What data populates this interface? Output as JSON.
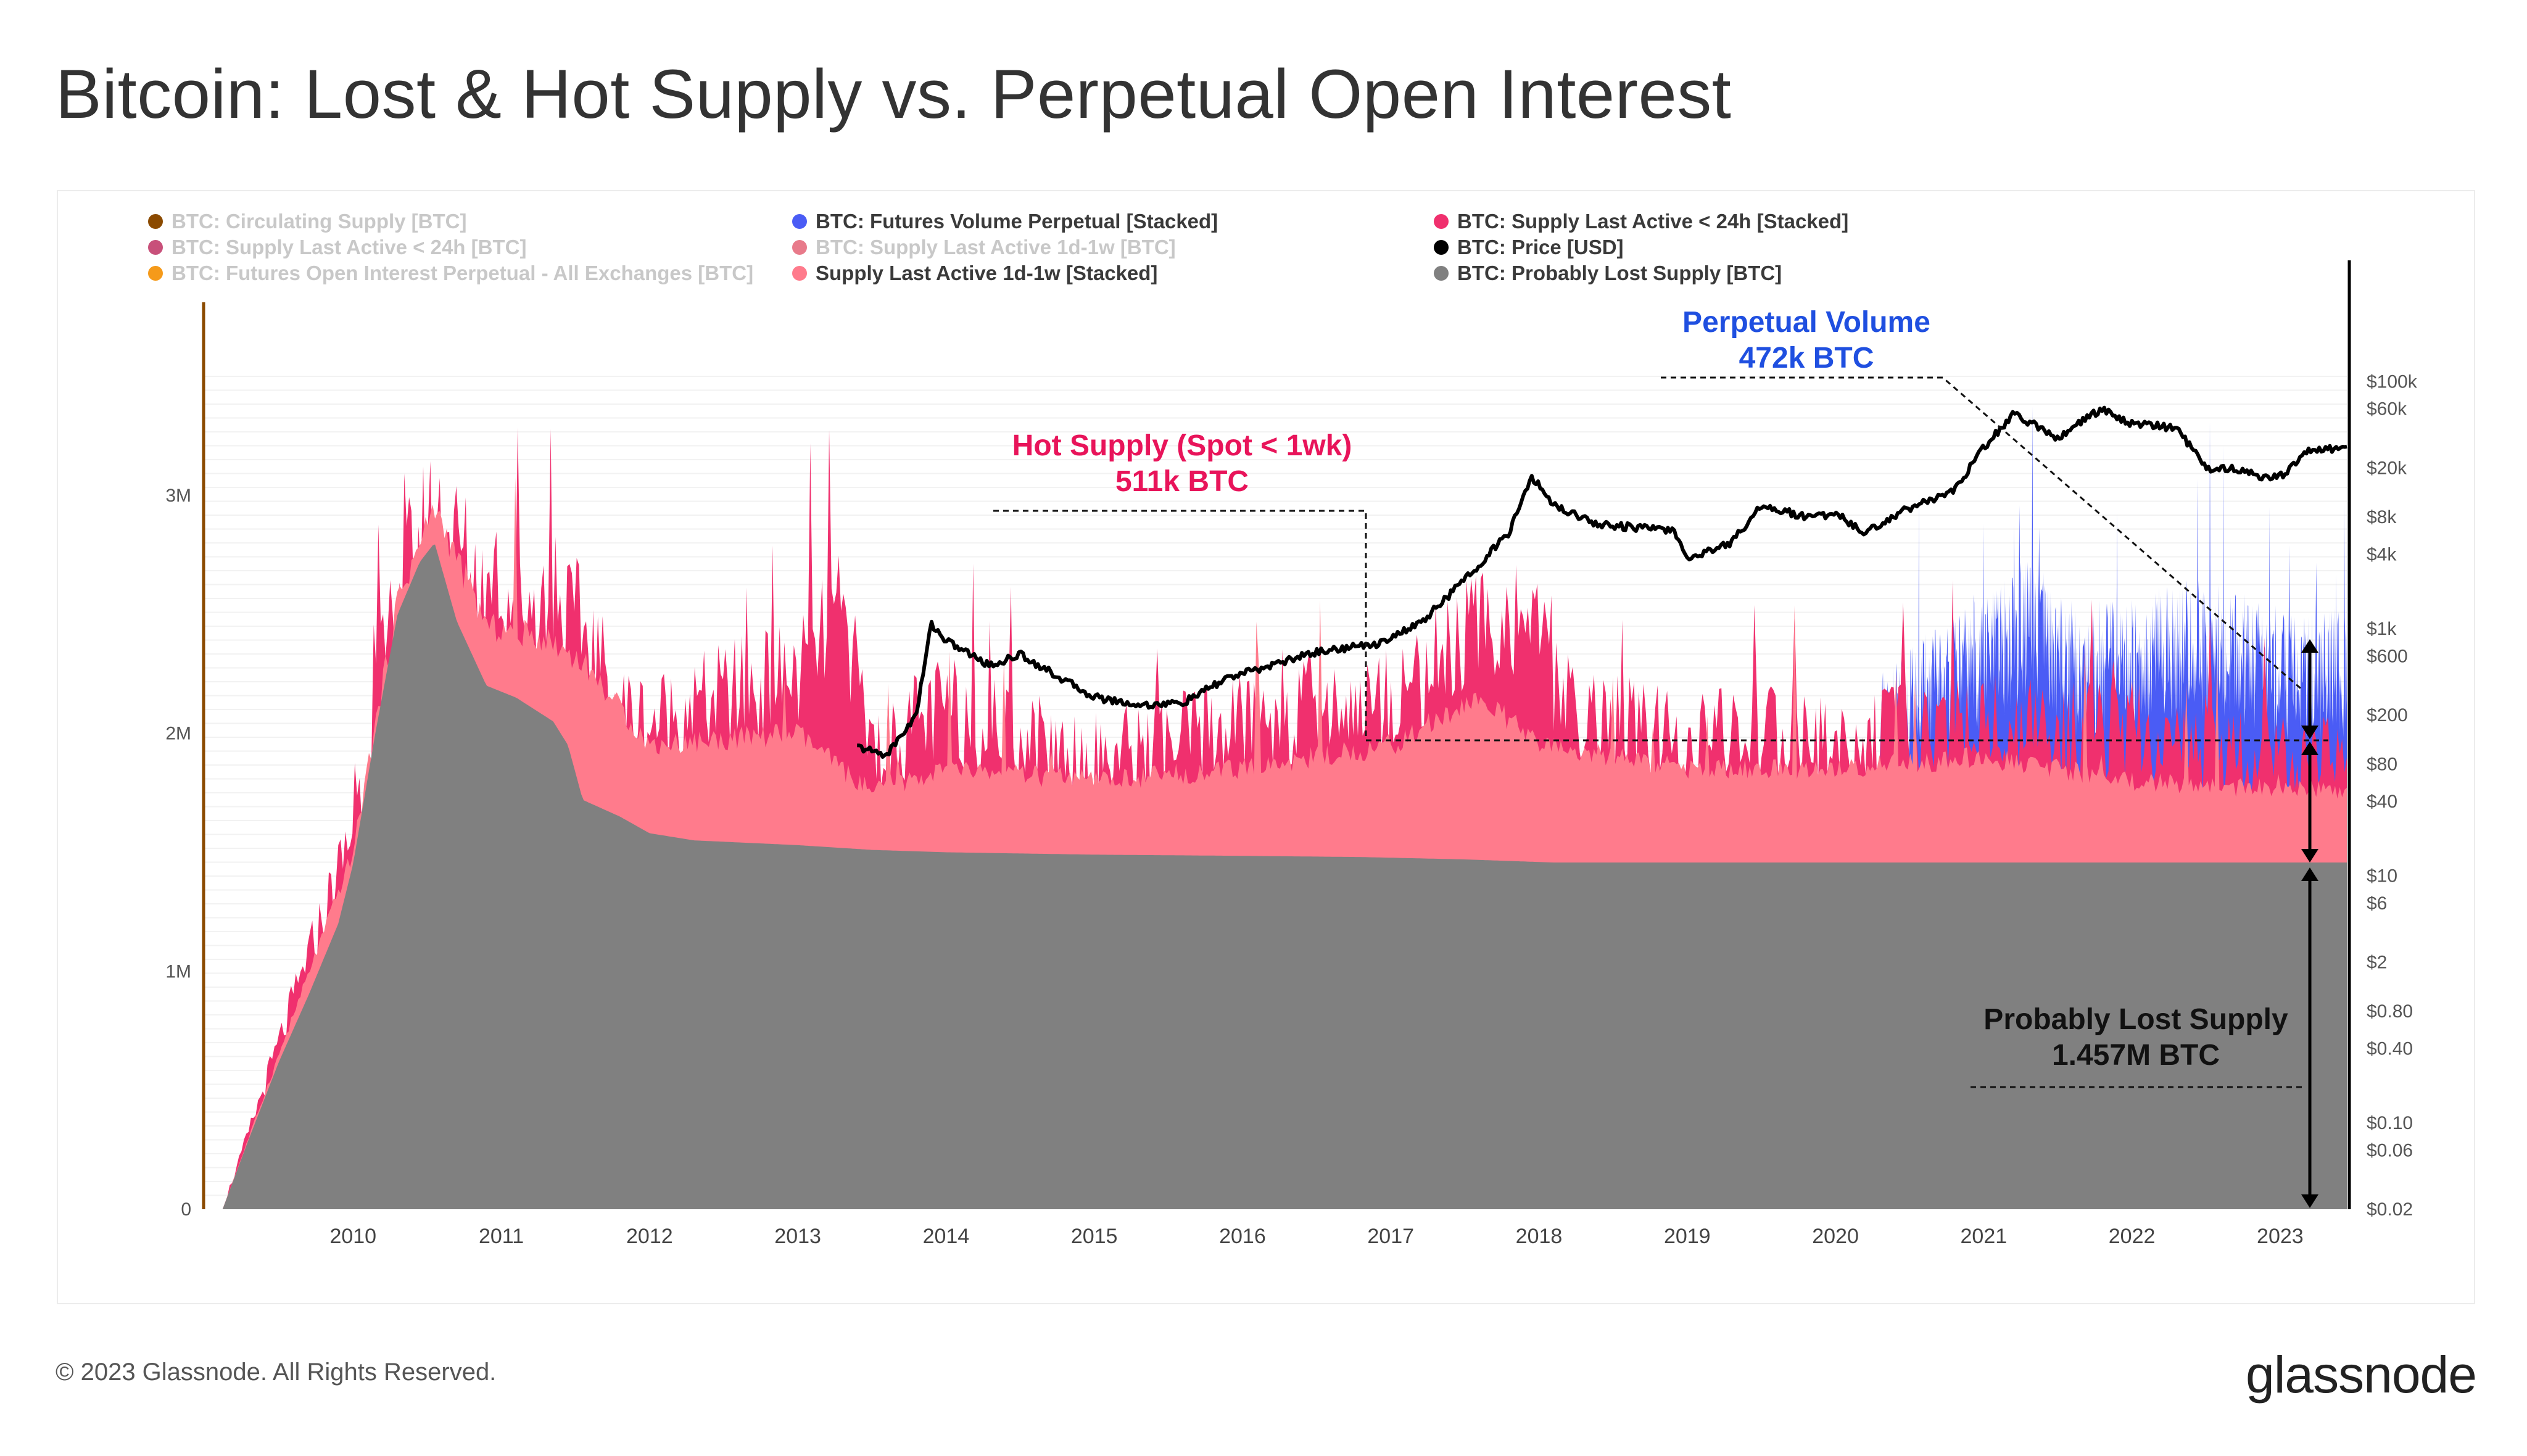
{
  "title": "Bitcoin: Lost & Hot Supply vs. Perpetual Open Interest",
  "footer": {
    "copyright": "© 2023 Glassnode. All Rights Reserved.",
    "brand": "glassnode"
  },
  "legend": {
    "col1": [
      {
        "label": "BTC: Circulating Supply [BTC]",
        "color": "#8b4a00",
        "muted": true
      },
      {
        "label": "BTC: Supply Last Active < 24h [BTC]",
        "color": "#c8507a",
        "muted": true
      },
      {
        "label": "BTC: Futures Open Interest Perpetual - All Exchanges [BTC]",
        "color": "#f59a1a",
        "muted": true
      }
    ],
    "col2": [
      {
        "label": "BTC: Futures Volume Perpetual [Stacked]",
        "color": "#4a5cf5",
        "muted": false
      },
      {
        "label": "BTC: Supply Last Active 1d-1w [BTC]",
        "color": "#e87a8a",
        "muted": true
      },
      {
        "label": "Supply Last Active 1d-1w [Stacked]",
        "color": "#ff7b8c",
        "muted": false
      }
    ],
    "col3": [
      {
        "label": "BTC: Supply Last Active < 24h [Stacked]",
        "color": "#f0306e",
        "muted": false
      },
      {
        "label": "BTC: Price [USD]",
        "color": "#000000",
        "muted": false
      },
      {
        "label": "BTC: Probably Lost Supply [BTC]",
        "color": "#808080",
        "muted": false
      }
    ]
  },
  "annotations": {
    "perp_title": "Perpetual Volume",
    "perp_value": "472k BTC",
    "hot_title": "Hot Supply (Spot < 1wk)",
    "hot_value": "511k BTC",
    "lost_title": "Probably Lost Supply",
    "lost_value": "1.457M BTC"
  },
  "colors": {
    "lost": "#808080",
    "supply_1d1w": "#ff7b8c",
    "supply_24h": "#f0306e",
    "perp_volume": "#4a5cf5",
    "price": "#000000",
    "circ_axis": "#8b4a00",
    "perp_annotation": "#1f4fe0",
    "hot_annotation": "#e8145a"
  },
  "chart_data": {
    "type": "area",
    "x_ticks": [
      "2010",
      "2011",
      "2012",
      "2013",
      "2014",
      "2015",
      "2016",
      "2017",
      "2018",
      "2019",
      "2020",
      "2021",
      "2022",
      "2023"
    ],
    "y_left_ticks": [
      "0",
      "1M",
      "2M",
      "3M"
    ],
    "y_left_values": [
      0,
      1000000,
      2000000,
      3000000
    ],
    "y_left_range": [
      0,
      3500000
    ],
    "y_right_ticks": [
      "$100k",
      "$60k",
      "$20k",
      "$8k",
      "$4k",
      "$1k",
      "$600",
      "$200",
      "$80",
      "$40",
      "$10",
      "$6",
      "$2",
      "$0.80",
      "$0.40",
      "$0.10",
      "$0.06",
      "$0.02"
    ],
    "y_right_values": [
      100000,
      60000,
      20000,
      8000,
      4000,
      1000,
      600,
      200,
      80,
      40,
      10,
      6,
      2,
      0.8,
      0.4,
      0.1,
      0.06,
      0.02
    ],
    "y_right_scale": "log",
    "y_right_range": [
      0.02,
      110000
    ],
    "x_range": [
      2009.0,
      2023.45
    ],
    "series": [
      {
        "name": "BTC: Probably Lost Supply [BTC]",
        "x": [
          2009.12,
          2009.3,
          2009.5,
          2009.7,
          2009.9,
          2010.0,
          2010.15,
          2010.3,
          2010.45,
          2010.55,
          2010.7,
          2010.9,
          2011.1,
          2011.35,
          2011.45,
          2011.55,
          2011.8,
          2012.0,
          2012.3,
          2013.0,
          2013.5,
          2014.0,
          2015.0,
          2016.0,
          2016.8,
          2017.5,
          2018.1,
          2019.0,
          2020.0,
          2021.0,
          2022.0,
          2023.45
        ],
        "values": [
          0,
          300000,
          620000,
          900000,
          1200000,
          1450000,
          2000000,
          2500000,
          2720000,
          2800000,
          2470000,
          2200000,
          2150000,
          2050000,
          1950000,
          1720000,
          1650000,
          1580000,
          1550000,
          1530000,
          1510000,
          1500000,
          1490000,
          1485000,
          1480000,
          1470000,
          1457000,
          1457000,
          1457000,
          1457000,
          1457000,
          1457000
        ]
      },
      {
        "name": "Supply Last Active 1d-1w [Stacked]",
        "x": [
          2009.12,
          2009.5,
          2010.0,
          2010.3,
          2010.55,
          2010.9,
          2011.3,
          2011.55,
          2012.0,
          2013.0,
          2013.5,
          2014.0,
          2015.0,
          2016.0,
          2017.0,
          2017.6,
          2018.0,
          2019.0,
          2020.0,
          2021.0,
          2022.0,
          2023.45
        ],
        "values": [
          0,
          650000,
          1500000,
          2560000,
          2950000,
          2450000,
          2400000,
          2300000,
          1950000,
          2000000,
          1750000,
          1850000,
          1800000,
          1850000,
          1950000,
          2150000,
          1950000,
          1850000,
          1850000,
          1900000,
          1800000,
          1750000
        ]
      },
      {
        "name": "BTC: Supply Last Active < 24h [Stacked]",
        "x": [
          2009.12,
          2009.5,
          2010.0,
          2010.3,
          2010.55,
          2010.9,
          2011.3,
          2011.55,
          2011.8,
          2012.0,
          2012.5,
          2013.0,
          2013.3,
          2013.5,
          2014.0,
          2014.5,
          2015.0,
          2015.5,
          2016.0,
          2016.5,
          2017.0,
          2017.6,
          2017.9,
          2018.2,
          2019.0,
          2019.5,
          2020.0,
          2020.5,
          2021.0,
          2021.5,
          2022.0,
          2022.5,
          2023.0,
          2023.45
        ],
        "values": [
          0,
          700000,
          1600000,
          2600000,
          2950000,
          2600000,
          2550000,
          2450000,
          2100000,
          2050000,
          2150000,
          2250000,
          2500000,
          1950000,
          2100000,
          2000000,
          1900000,
          1950000,
          2050000,
          2100000,
          2150000,
          2450000,
          2500000,
          2100000,
          1950000,
          2000000,
          1950000,
          2000000,
          2050000,
          2000000,
          2000000,
          1950000,
          1900000,
          1850000
        ]
      },
      {
        "name": "BTC: Futures Volume Perpetual [Stacked]",
        "x": [
          2020.3,
          2020.6,
          2021.0,
          2021.3,
          2021.6,
          2022.0,
          2022.3,
          2022.6,
          2023.0,
          2023.45
        ],
        "values": [
          2000000,
          2150000,
          2300000,
          2450000,
          2250000,
          2300000,
          2350000,
          2350000,
          2250000,
          2250000
        ]
      },
      {
        "name": "BTC: Price [USD]",
        "x": [
          2013.4,
          2013.6,
          2013.8,
          2013.9,
          2014.0,
          2014.3,
          2014.5,
          2014.8,
          2015.0,
          2015.3,
          2015.6,
          2015.9,
          2016.0,
          2016.5,
          2016.9,
          2017.2,
          2017.5,
          2017.8,
          2017.95,
          2018.1,
          2018.4,
          2018.7,
          2018.9,
          2019.0,
          2019.3,
          2019.5,
          2019.8,
          2020.0,
          2020.2,
          2020.5,
          2020.8,
          2021.0,
          2021.2,
          2021.5,
          2021.8,
          2021.9,
          2022.0,
          2022.3,
          2022.5,
          2022.7,
          2022.9,
          2023.0,
          2023.2,
          2023.45
        ],
        "values": [
          110,
          95,
          200,
          1100,
          800,
          500,
          620,
          380,
          280,
          240,
          250,
          400,
          430,
          650,
          750,
          1100,
          2500,
          6000,
          17000,
          10000,
          7000,
          6500,
          6300,
          3700,
          5000,
          10000,
          8000,
          8500,
          6000,
          9500,
          13000,
          29000,
          55000,
          35000,
          61000,
          50000,
          46000,
          42000,
          20000,
          19500,
          16500,
          17000,
          28000,
          29000
        ]
      }
    ]
  }
}
